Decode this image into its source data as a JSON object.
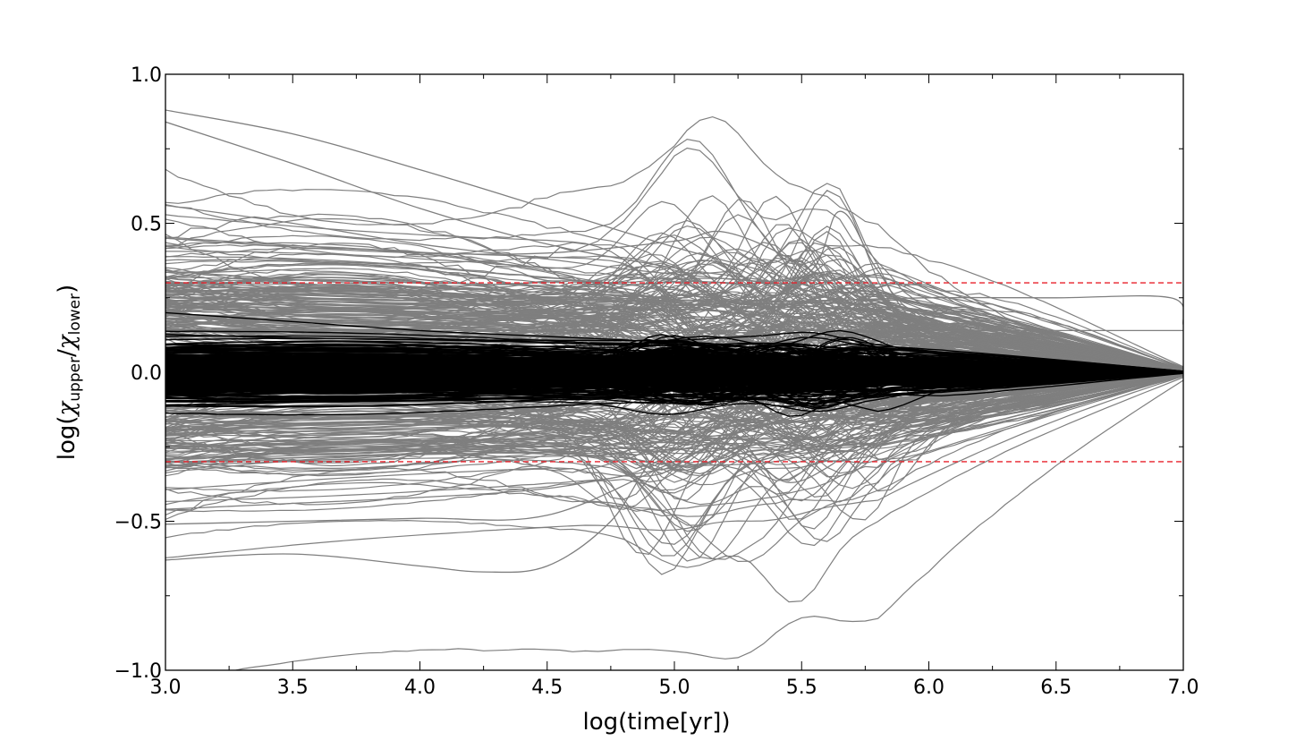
{
  "chart_data": {
    "type": "line",
    "title": "",
    "xlabel": "log(time[yr])",
    "ylabel": {
      "prefix": "log(",
      "upper": "upper",
      "lower": "lower",
      "suffix": ")"
    },
    "xlim": [
      3.0,
      7.0
    ],
    "ylim": [
      -1.0,
      1.0
    ],
    "x_ticks": [
      3.0,
      3.5,
      4.0,
      4.5,
      5.0,
      5.5,
      6.0,
      6.5,
      7.0
    ],
    "x_tick_labels": [
      "3.0",
      "3.5",
      "4.0",
      "4.5",
      "5.0",
      "5.5",
      "6.0",
      "6.5",
      "7.0"
    ],
    "x_minor_step": 0.25,
    "y_ticks": [
      -1.0,
      -0.5,
      0.0,
      0.5,
      1.0
    ],
    "y_tick_labels": [
      "−1.0",
      "−0.5",
      "0.0",
      "0.5",
      "1.0"
    ],
    "y_minor_step": 0.25,
    "grid": false,
    "reference_lines": [
      {
        "y": 0.3,
        "style": "dashed",
        "color": "#e8202a"
      },
      {
        "y": -0.3,
        "style": "dashed",
        "color": "#e8202a"
      }
    ],
    "series_groups": [
      {
        "description_color": "gray",
        "color": "#7f7f7f",
        "approx_count": 300,
        "representative_series": [
          {
            "x": [
              3.0,
              3.5,
              4.0,
              4.5,
              5.0,
              5.5,
              6.0,
              6.5,
              7.0
            ],
            "y": [
              0.88,
              0.8,
              0.68,
              0.55,
              0.42,
              0.3,
              0.12,
              0.03,
              0.0
            ]
          },
          {
            "x": [
              3.0,
              3.5,
              4.0,
              4.5,
              5.0,
              5.5,
              6.0,
              6.5,
              7.0
            ],
            "y": [
              0.84,
              0.7,
              0.55,
              0.43,
              0.35,
              0.28,
              0.1,
              0.02,
              0.0
            ]
          },
          {
            "x": [
              3.0,
              3.5,
              4.0,
              4.5,
              5.0,
              5.5,
              5.65,
              5.8,
              6.0,
              6.5,
              7.0
            ],
            "y": [
              0.56,
              0.5,
              0.43,
              0.38,
              0.33,
              0.32,
              0.54,
              0.34,
              0.14,
              0.03,
              0.0
            ]
          },
          {
            "x": [
              3.0,
              3.5,
              4.0,
              4.5,
              5.0,
              5.2,
              5.5,
              6.0,
              6.5,
              7.0
            ],
            "y": [
              0.45,
              0.42,
              0.4,
              0.4,
              0.44,
              0.47,
              0.36,
              0.1,
              0.02,
              0.0
            ]
          },
          {
            "x": [
              3.0,
              3.5,
              4.0,
              4.5,
              5.0,
              5.5,
              6.0,
              6.5,
              6.95,
              7.0
            ],
            "y": [
              0.25,
              0.24,
              0.23,
              0.23,
              0.24,
              0.24,
              0.25,
              0.25,
              0.25,
              0.16
            ]
          },
          {
            "x": [
              3.0,
              3.5,
              4.0,
              4.5,
              5.0,
              5.5,
              6.0,
              6.5,
              7.0
            ],
            "y": [
              0.14,
              0.14,
              0.14,
              0.14,
              0.14,
              0.14,
              0.14,
              0.14,
              0.14
            ]
          },
          {
            "x": [
              3.0,
              3.5,
              4.0,
              4.5,
              5.0,
              5.5,
              6.0,
              6.5,
              7.0
            ],
            "y": [
              -0.46,
              -0.44,
              -0.42,
              -0.39,
              -0.32,
              -0.28,
              -0.06,
              -0.01,
              0.0
            ]
          },
          {
            "x": [
              3.0,
              3.5,
              4.0,
              4.5,
              5.0,
              5.5,
              6.0,
              6.5,
              7.0
            ],
            "y": [
              -0.51,
              -0.5,
              -0.49,
              -0.48,
              -0.3,
              -0.12,
              -0.04,
              -0.01,
              0.0
            ]
          },
          {
            "x": [
              3.0,
              3.5,
              4.0,
              4.25,
              4.5,
              4.75,
              5.0,
              5.5,
              6.0,
              6.5,
              7.0
            ],
            "y": [
              -0.63,
              -0.61,
              -0.65,
              -0.67,
              -0.65,
              -0.5,
              -0.22,
              -0.08,
              -0.02,
              0.0,
              0.0
            ]
          },
          {
            "x": [
              3.0,
              3.5,
              4.0,
              4.5,
              5.0,
              5.3,
              5.45,
              5.6,
              5.75,
              6.0,
              6.5,
              7.0
            ],
            "y": [
              -0.23,
              -0.23,
              -0.24,
              -0.25,
              -0.2,
              -0.3,
              -0.37,
              -0.32,
              -0.22,
              -0.05,
              -0.01,
              0.0
            ]
          }
        ]
      },
      {
        "description_color": "black",
        "color": "#000000",
        "approx_count": 300,
        "representative_series": [
          {
            "x": [
              3.0,
              3.5,
              4.0,
              4.5,
              5.0,
              5.5,
              6.0,
              6.5,
              7.0
            ],
            "y": [
              0.2,
              0.17,
              0.14,
              0.12,
              0.1,
              0.07,
              0.04,
              0.02,
              0.0
            ]
          },
          {
            "x": [
              3.0,
              3.5,
              4.0,
              4.5,
              5.0,
              5.5,
              6.0,
              6.5,
              7.0
            ],
            "y": [
              -0.11,
              -0.1,
              -0.08,
              -0.06,
              -0.04,
              -0.03,
              -0.02,
              -0.01,
              0.0
            ]
          },
          {
            "x": [
              3.0,
              3.5,
              4.0,
              4.5,
              5.0,
              5.5,
              6.0,
              6.5,
              7.0
            ],
            "y": [
              0.0,
              0.0,
              0.0,
              0.0,
              0.0,
              0.0,
              0.0,
              0.0,
              0.0
            ]
          }
        ]
      }
    ],
    "legend": null
  }
}
